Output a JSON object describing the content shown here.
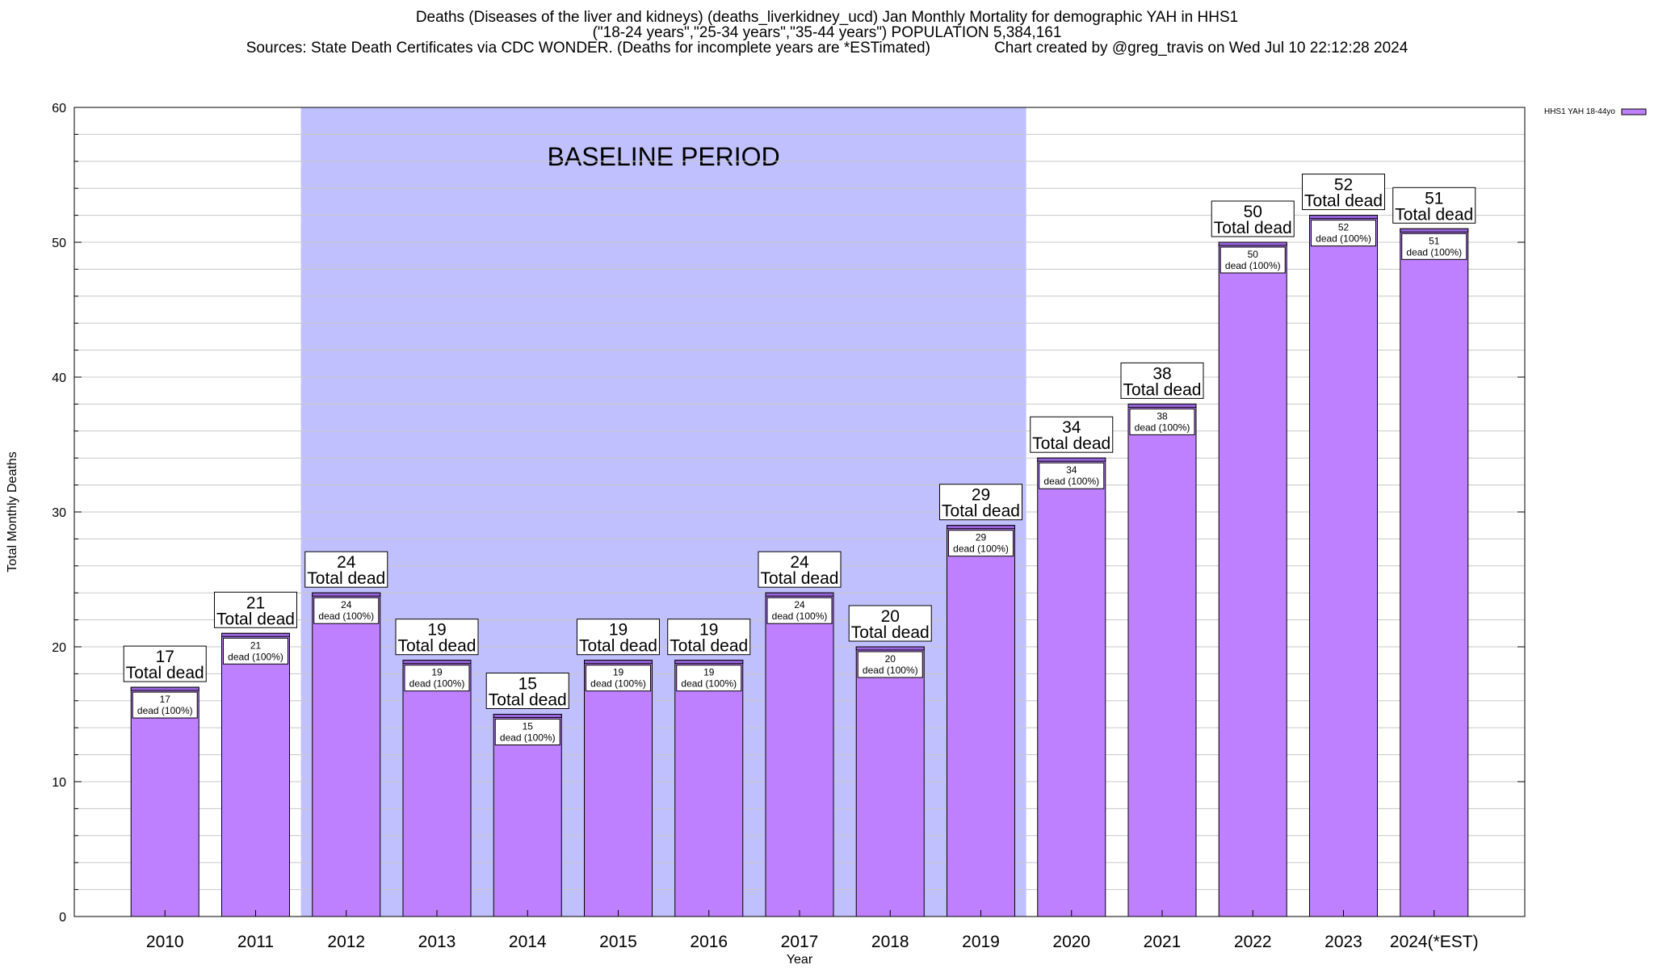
{
  "chart_data": {
    "type": "bar",
    "title": "Deaths (Diseases of the liver and kidneys) (deaths_liverkidney_ucd) Jan Monthly Mortality for demographic YAH in HHS1",
    "subtitle": "(\"18-24 years\",\"25-34 years\",\"35-44 years\") POPULATION 5,384,161",
    "source_line": "Sources: State Death Certificates via CDC WONDER. (Deaths for incomplete years are *ESTimated)               Chart created by @greg_travis on Wed Jul 10 22:12:28 2024",
    "xlabel": "Year",
    "ylabel": "Total Monthly Deaths",
    "ylim": [
      0,
      60
    ],
    "yticks": [
      0,
      10,
      20,
      30,
      40,
      50,
      60
    ],
    "grid": "horizontal",
    "legend": {
      "position": "top-right",
      "label": "HHS1 YAH 18-44yo"
    },
    "baseline_label": "BASELINE PERIOD",
    "baseline_range": [
      "2012",
      "2019"
    ],
    "categories": [
      "2010",
      "2011",
      "2012",
      "2013",
      "2014",
      "2015",
      "2016",
      "2017",
      "2018",
      "2019",
      "2020",
      "2021",
      "2022",
      "2023",
      "2024(*EST)"
    ],
    "series": [
      {
        "name": "HHS1 YAH 18-44yo",
        "values": [
          17,
          21,
          24,
          19,
          15,
          19,
          19,
          24,
          20,
          29,
          34,
          38,
          50,
          52,
          51
        ]
      }
    ],
    "total_label": "Total dead",
    "inner_label": "dead (100%)"
  },
  "colors": {
    "bar": "#bf80ff",
    "bar_top": "#9966dd",
    "baseline_shade": "#c0c0ff",
    "grid": "#c8c8c8",
    "axis": "#000000"
  }
}
